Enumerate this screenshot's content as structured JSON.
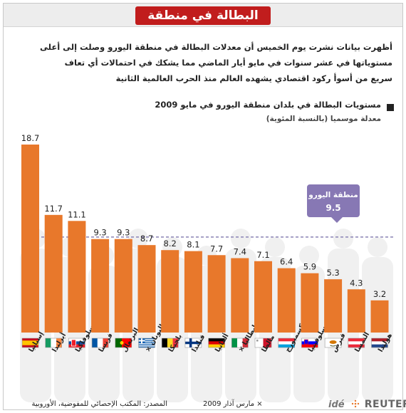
{
  "page": {
    "title": "البطالة في منطقة اليورو",
    "intro_lines": [
      "أظهرت بيانات نشرت يوم الخميس أن معدلات البطالة في منطقة اليورو وصلت إلى أعلى",
      "مستوياتها في عشر سنوات في مايو أيار الماضي مما يشكك في احتمالات أي تعاف",
      "سريع من أسوأ ركود اقتصادي يشهده العالم منذ الحرب العالمية الثانية"
    ],
    "chart_title": "مستويات البطالة في بلدان منطقة اليورو في مايو 2009",
    "chart_subtitle": "معدلة موسميا (بالنسبة المئوية)",
    "source": "المصدر: المكتب الإحصائي للمفوضية، الأوروبية",
    "footnote": "× مارس آذار 2009",
    "logo_ide": "idé",
    "logo_reuters": "REUTERS"
  },
  "colors": {
    "bar": "#e8782b",
    "title_bg": "#c11d1d",
    "callout": "#8778b4",
    "reference_line": "#8a82b5"
  },
  "chart_data": {
    "type": "bar",
    "categories": [
      "إسبانيا",
      "أيرلندا",
      "سلوفاكيا",
      "فرنسا",
      "البرتغال",
      "اليونان ×",
      "بلجيكا",
      "فنلندا",
      "ألمانيا",
      "إيطاليا ×",
      "مالطا",
      "لوكسمبورج",
      "سلوفينيا",
      "قبرص",
      "النمسا",
      "هولندا"
    ],
    "values": [
      18.7,
      11.7,
      11.1,
      9.3,
      9.3,
      8.7,
      8.2,
      8.1,
      7.7,
      7.4,
      7.1,
      6.4,
      5.9,
      5.3,
      4.3,
      3.2
    ],
    "value_labels": [
      "18.7",
      "11.7",
      "11.1",
      "9.3",
      "9.3",
      "8.7",
      "8.2",
      "8.1",
      "7.7",
      "7.4",
      "7.1",
      "6.4",
      "5.9",
      "5.3",
      "4.3",
      "3.2"
    ],
    "flags": [
      "spain-flag",
      "ireland-flag",
      "slovakia-flag",
      "france-flag",
      "portugal-flag",
      "greece-flag",
      "belgium-flag",
      "finland-flag",
      "germany-flag",
      "italy-flag",
      "malta-flag",
      "luxembourg-flag",
      "slovenia-flag",
      "cyprus-flag",
      "austria-flag",
      "netherlands-flag"
    ],
    "reference": {
      "label": "منطقة اليورو",
      "value": 9.5,
      "value_label": "9.5"
    },
    "ylim": [
      0,
      20
    ]
  }
}
